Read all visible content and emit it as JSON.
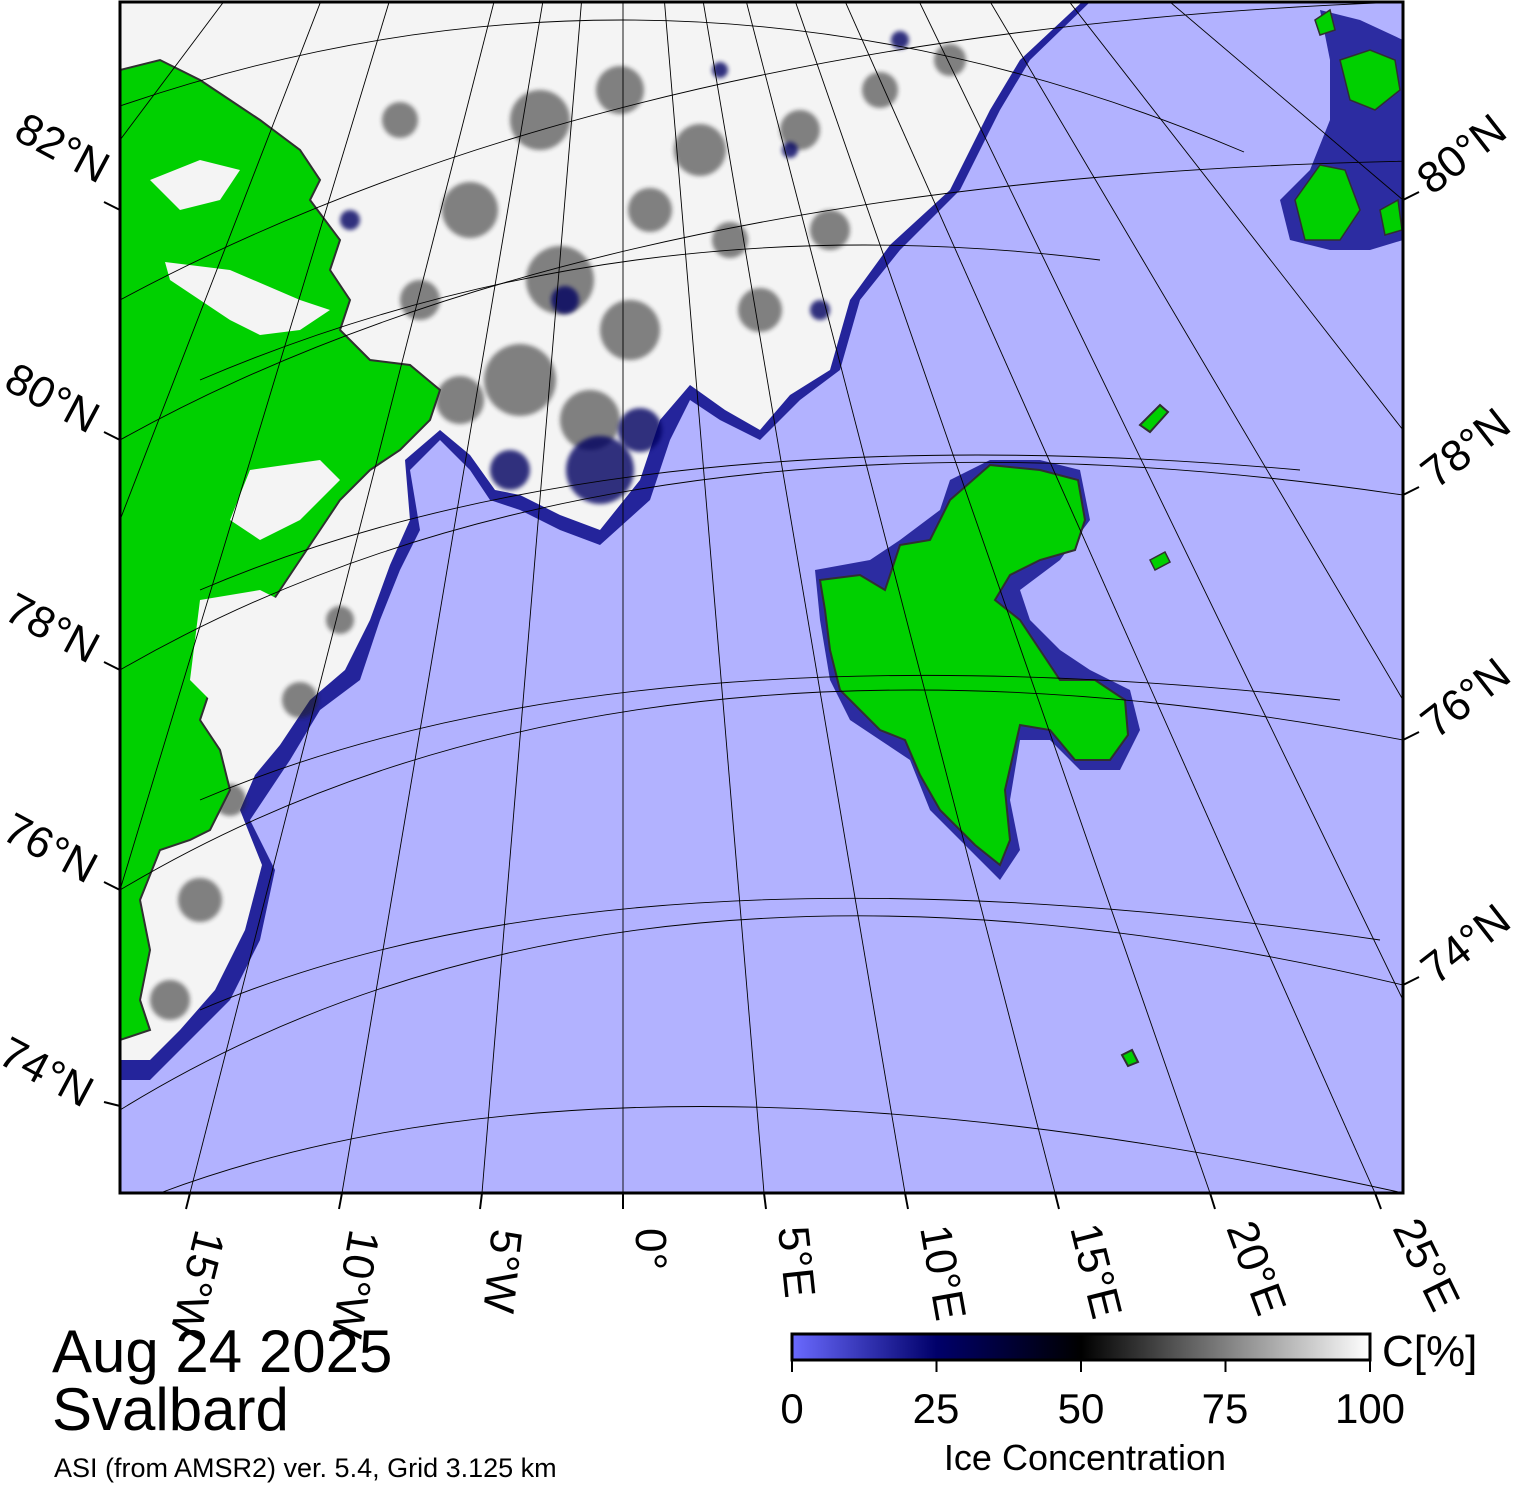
{
  "map": {
    "date": "Aug 24 2025",
    "region": "Svalbard",
    "product": "ASI (from AMSR2) ver. 5.4,  Grid 3.125 km",
    "colors": {
      "open_water": "#b2b2ff",
      "land": "#00d000",
      "coast": "#303030",
      "grid": "#000000",
      "ice_full": "#ffffff"
    },
    "latitude_labels_left": [
      "82°N",
      "80°N",
      "78°N",
      "76°N",
      "74°N"
    ],
    "latitude_labels_right": [
      "80°N",
      "78°N",
      "76°N",
      "74°N"
    ],
    "longitude_labels": [
      "15°W",
      "10°W",
      "5°W",
      "0°",
      "5°E",
      "10°E",
      "15°E",
      "20°E",
      "25°E"
    ]
  },
  "colorbar": {
    "unit": "C[%]",
    "title": "Ice Concentration",
    "ticks": [
      "0",
      "25",
      "50",
      "75",
      "100"
    ],
    "stops": [
      "#6a6aff",
      "#00006a",
      "#000000",
      "#808080",
      "#ffffff"
    ]
  }
}
